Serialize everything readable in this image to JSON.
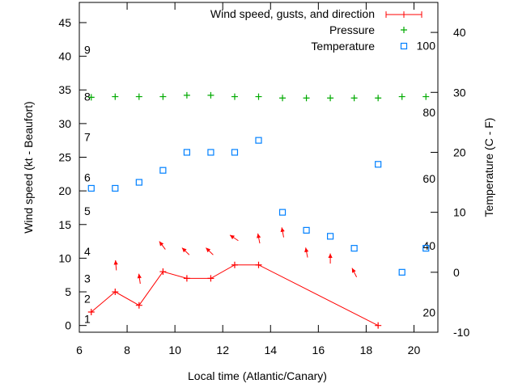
{
  "chart_data": {
    "type": "line",
    "xlabel": "Local time (Atlantic/Canary)",
    "ylabel": "Wind speed (kt - Beaufort)",
    "y2label": "Temperature (C - F)",
    "xlim": [
      6,
      21
    ],
    "ylim": [
      -1,
      48
    ],
    "y2lim": [
      -10,
      45
    ],
    "xticks": [
      6,
      8,
      10,
      12,
      14,
      16,
      18,
      20
    ],
    "yticks": [
      0,
      5,
      10,
      15,
      20,
      25,
      30,
      35,
      40,
      45
    ],
    "y2ticks": [
      -10,
      0,
      10,
      20,
      30,
      40
    ],
    "legend_position": "top-right",
    "colors": {
      "wind": "#ff0000",
      "pressure": "#00aa00",
      "temperature": "#0080ff"
    },
    "series": [
      {
        "name": "Wind speed, gusts, and direction",
        "axis": "y",
        "x": [
          6.5,
          7.5,
          8.5,
          9.5,
          10.5,
          11.5,
          12.5,
          13.5,
          18.5
        ],
        "values": [
          2,
          5,
          3,
          8,
          7,
          7,
          9,
          9,
          0
        ]
      },
      {
        "name": "Pressure",
        "axis": "y",
        "x": [
          6.5,
          7.5,
          8.5,
          9.5,
          10.5,
          11.5,
          12.5,
          13.5,
          14.5,
          15.5,
          16.5,
          17.5,
          18.5,
          19.5,
          20.5
        ],
        "values": [
          33.9,
          34.0,
          34.0,
          34.0,
          34.2,
          34.2,
          34.0,
          34.0,
          33.8,
          33.8,
          33.8,
          33.8,
          33.8,
          34.0,
          34.0
        ]
      },
      {
        "name": "Temperature",
        "axis": "y2",
        "x": [
          6.5,
          7.5,
          8.5,
          9.5,
          10.5,
          11.5,
          12.5,
          13.5,
          14.5,
          15.5,
          16.5,
          17.5,
          18.5,
          19.5,
          20.5
        ],
        "values": [
          14,
          14,
          15,
          17,
          20,
          20,
          20,
          22,
          10,
          7,
          6,
          4,
          18,
          0,
          4
        ]
      }
    ],
    "wind_direction_arrows": [
      {
        "x": 7.55,
        "y": 8.2,
        "heading_deg": 355
      },
      {
        "x": 8.55,
        "y": 6.2,
        "heading_deg": 352
      },
      {
        "x": 9.6,
        "y": 11.3,
        "heading_deg": 323
      },
      {
        "x": 10.6,
        "y": 10.5,
        "heading_deg": 314
      },
      {
        "x": 11.6,
        "y": 10.5,
        "heading_deg": 314
      },
      {
        "x": 12.65,
        "y": 12.6,
        "heading_deg": 304
      },
      {
        "x": 13.55,
        "y": 12.2,
        "heading_deg": 349
      },
      {
        "x": 14.55,
        "y": 13.1,
        "heading_deg": 349
      },
      {
        "x": 15.55,
        "y": 10.1,
        "heading_deg": 349
      },
      {
        "x": 16.5,
        "y": 9.2,
        "heading_deg": 0
      },
      {
        "x": 17.6,
        "y": 7.2,
        "heading_deg": 333
      }
    ],
    "beaufort_labels": [
      {
        "text": "1",
        "y": 1
      },
      {
        "text": "2",
        "y": 4
      },
      {
        "text": "3",
        "y": 7
      },
      {
        "text": "4",
        "y": 11
      },
      {
        "text": "5",
        "y": 17
      },
      {
        "text": "6",
        "y": 22
      },
      {
        "text": "7",
        "y": 28
      },
      {
        "text": "8",
        "y": 34
      },
      {
        "text": "9",
        "y": 41
      }
    ],
    "fahrenheit_labels": [
      {
        "text": "20",
        "y2": -6.7
      },
      {
        "text": "40",
        "y2": 4.4
      },
      {
        "text": "60",
        "y2": 15.6
      },
      {
        "text": "80",
        "y2": 26.7
      },
      {
        "text": "100",
        "y2": 37.8
      }
    ]
  }
}
